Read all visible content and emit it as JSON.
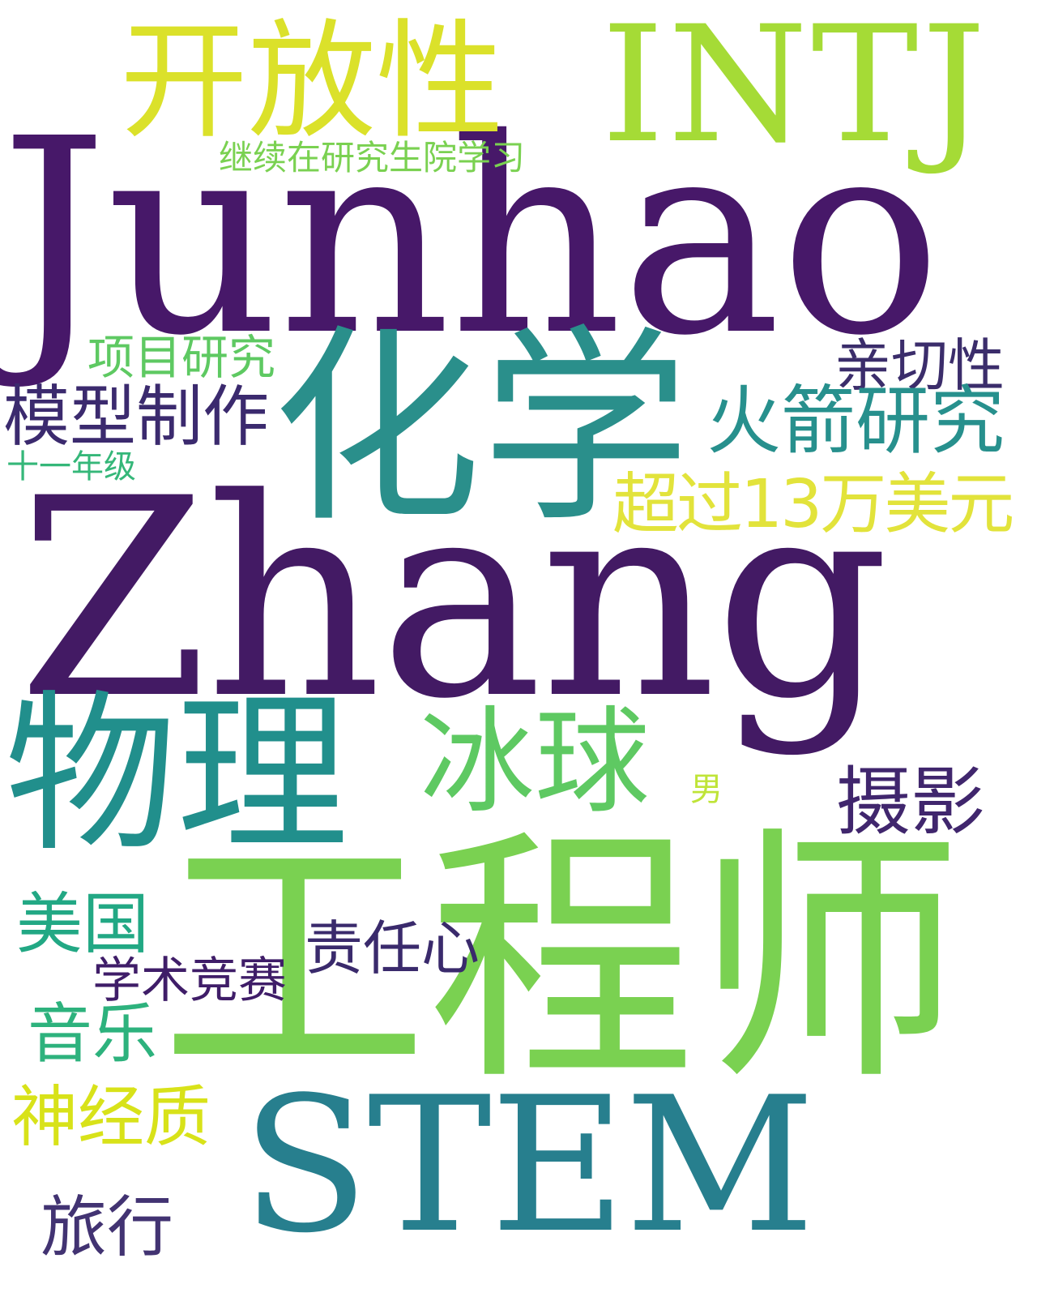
{
  "words": [
    {
      "text": "Junhao",
      "color": "#471869"
    },
    {
      "text": "Zhang",
      "color": "#431a64"
    },
    {
      "text": "INTJ",
      "color": "#a5db36"
    },
    {
      "text": "开放性",
      "color": "#dbe12a"
    },
    {
      "text": "继续在研究生院学习",
      "color": "#7ad151"
    },
    {
      "text": "化学",
      "color": "#2a8f8b"
    },
    {
      "text": "项目研究",
      "color": "#5ec962"
    },
    {
      "text": "亲切性",
      "color": "#3b2d6b"
    },
    {
      "text": "模型制作",
      "color": "#3b2a6e"
    },
    {
      "text": "火箭研究",
      "color": "#27908d"
    },
    {
      "text": "十一年级",
      "color": "#35b779"
    },
    {
      "text": "超过13万美元",
      "color": "#e2e33b"
    },
    {
      "text": "物理",
      "color": "#218f8c"
    },
    {
      "text": "冰球",
      "color": "#5ec962"
    },
    {
      "text": "男",
      "color": "#bfe438"
    },
    {
      "text": "摄影",
      "color": "#40266d"
    },
    {
      "text": "工程师",
      "color": "#7ad151"
    },
    {
      "text": "美国",
      "color": "#22a884"
    },
    {
      "text": "责任心",
      "color": "#3a2a6c"
    },
    {
      "text": "学术竞赛",
      "color": "#3f1d68"
    },
    {
      "text": "音乐",
      "color": "#2db27d"
    },
    {
      "text": "神经质",
      "color": "#d8e219"
    },
    {
      "text": "STEM",
      "color": "#277f8e"
    },
    {
      "text": "旅行",
      "color": "#423372"
    }
  ]
}
